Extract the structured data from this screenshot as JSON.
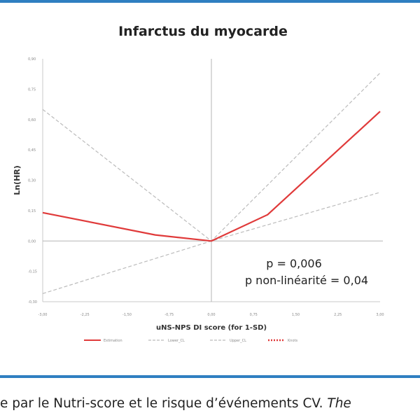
{
  "chart_data": {
    "type": "line",
    "title": "Infarctus du myocarde",
    "xlabel": "uNS-NPS DI score (for 1-SD)",
    "ylabel": "Ln(HR)",
    "x_tick_labels": [
      "-3,00",
      "-2,25",
      "-1,50",
      "-0,75",
      "0,00",
      "0,75",
      "1,50",
      "2,25",
      "3,00"
    ],
    "y_tick_labels": [
      "-0,30",
      "-0,15",
      "0,00",
      "0,15",
      "0,30",
      "0,45",
      "0,60",
      "0,75",
      "0,90"
    ],
    "xlim": [
      -3,
      3
    ],
    "ylim": [
      -0.3,
      0.9
    ],
    "series": [
      {
        "name": "Estimation",
        "color": "#e03a3a",
        "style": "solid",
        "points": [
          [
            -3,
            0.14
          ],
          [
            -1,
            0.03
          ],
          [
            0,
            0
          ],
          [
            1,
            0.13
          ],
          [
            3,
            0.64
          ]
        ]
      },
      {
        "name": "Lower_CL",
        "color": "#bbbbbb",
        "style": "dashed",
        "points": [
          [
            -3,
            -0.26
          ],
          [
            0,
            0
          ],
          [
            3,
            0.24
          ]
        ]
      },
      {
        "name": "Upper_CL",
        "color": "#bbbbbb",
        "style": "dashed",
        "points": [
          [
            -3,
            0.65
          ],
          [
            0,
            0
          ],
          [
            3,
            0.83
          ]
        ]
      },
      {
        "name": "Knots",
        "color": "#e03a3a",
        "style": "dotted",
        "points": []
      }
    ],
    "reference_lines": {
      "x": 0,
      "y": 0
    },
    "annotations": [
      "p = 0,006",
      "p non-linéarité = 0,04"
    ],
    "legend_position": "bottom"
  },
  "caption": {
    "text": "e par le Nutri-score et le risque d’événements CV. ",
    "italic_text": "The"
  }
}
